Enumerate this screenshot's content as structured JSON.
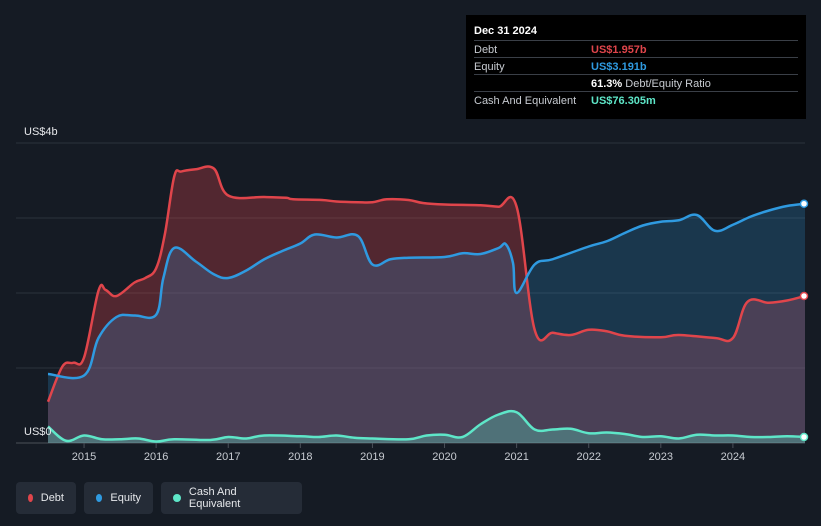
{
  "tooltip": {
    "date": "Dec 31 2024",
    "rows": [
      {
        "label": "Debt",
        "value": "US$1.957b",
        "suffix": "",
        "color": "#e0454b"
      },
      {
        "label": "Equity",
        "value": "US$3.191b",
        "suffix": "",
        "color": "#2f9ae0"
      },
      {
        "label": "",
        "value": "61.3%",
        "suffix": "Debt/Equity Ratio",
        "color": "#ffffff"
      },
      {
        "label": "Cash And Equivalent",
        "value": "US$76.305m",
        "suffix": "",
        "color": "#5ee6c8"
      }
    ]
  },
  "legend": [
    {
      "label": "Debt",
      "color": "#e0454b"
    },
    {
      "label": "Equity",
      "color": "#2f9ae0"
    },
    {
      "label": "Cash And Equivalent",
      "color": "#5ee6c8"
    }
  ],
  "chart_data": {
    "type": "area",
    "y_top_label": "US$4b",
    "y_bottom_label": "US$0",
    "ylim": [
      0,
      4.0
    ],
    "xlim": [
      2014.5,
      2025.0
    ],
    "x_ticks": [
      "2015",
      "2016",
      "2017",
      "2018",
      "2019",
      "2020",
      "2021",
      "2022",
      "2023",
      "2024"
    ],
    "grid": true,
    "series": [
      {
        "name": "Debt",
        "color": "#e0454b",
        "points": [
          [
            2014.5,
            0.55
          ],
          [
            2014.7,
            1.02
          ],
          [
            2014.85,
            1.07
          ],
          [
            2015.0,
            1.14
          ],
          [
            2015.2,
            2.03
          ],
          [
            2015.3,
            2.04
          ],
          [
            2015.45,
            1.96
          ],
          [
            2015.7,
            2.14
          ],
          [
            2015.85,
            2.2
          ],
          [
            2016.0,
            2.33
          ],
          [
            2016.12,
            2.78
          ],
          [
            2016.25,
            3.55
          ],
          [
            2016.35,
            3.62
          ],
          [
            2016.55,
            3.65
          ],
          [
            2016.8,
            3.66
          ],
          [
            2017.0,
            3.3
          ],
          [
            2017.5,
            3.28
          ],
          [
            2017.8,
            3.27
          ],
          [
            2017.9,
            3.25
          ],
          [
            2018.3,
            3.24
          ],
          [
            2018.5,
            3.22
          ],
          [
            2018.8,
            3.21
          ],
          [
            2019.0,
            3.21
          ],
          [
            2019.2,
            3.25
          ],
          [
            2019.5,
            3.24
          ],
          [
            2019.7,
            3.2
          ],
          [
            2020.0,
            3.18
          ],
          [
            2020.5,
            3.17
          ],
          [
            2020.75,
            3.15
          ],
          [
            2021.0,
            3.15
          ],
          [
            2021.25,
            1.51
          ],
          [
            2021.5,
            1.47
          ],
          [
            2021.75,
            1.44
          ],
          [
            2022.0,
            1.51
          ],
          [
            2022.25,
            1.49
          ],
          [
            2022.5,
            1.43
          ],
          [
            2023.0,
            1.41
          ],
          [
            2023.25,
            1.44
          ],
          [
            2023.75,
            1.4
          ],
          [
            2024.0,
            1.4
          ],
          [
            2024.2,
            1.88
          ],
          [
            2024.5,
            1.87
          ],
          [
            2024.75,
            1.9
          ],
          [
            2025.0,
            1.96
          ]
        ]
      },
      {
        "name": "Equity",
        "color": "#2f9ae0",
        "points": [
          [
            2014.5,
            0.92
          ],
          [
            2015.0,
            0.9
          ],
          [
            2015.2,
            1.4
          ],
          [
            2015.45,
            1.68
          ],
          [
            2015.7,
            1.7
          ],
          [
            2016.0,
            1.71
          ],
          [
            2016.1,
            2.2
          ],
          [
            2016.25,
            2.6
          ],
          [
            2016.55,
            2.42
          ],
          [
            2016.8,
            2.25
          ],
          [
            2017.0,
            2.2
          ],
          [
            2017.25,
            2.3
          ],
          [
            2017.5,
            2.45
          ],
          [
            2017.75,
            2.56
          ],
          [
            2018.0,
            2.66
          ],
          [
            2018.2,
            2.78
          ],
          [
            2018.5,
            2.74
          ],
          [
            2018.8,
            2.76
          ],
          [
            2019.0,
            2.38
          ],
          [
            2019.25,
            2.45
          ],
          [
            2019.5,
            2.47
          ],
          [
            2020.0,
            2.48
          ],
          [
            2020.25,
            2.53
          ],
          [
            2020.5,
            2.52
          ],
          [
            2020.75,
            2.6
          ],
          [
            2020.85,
            2.65
          ],
          [
            2020.95,
            2.4
          ],
          [
            2021.0,
            2.0
          ],
          [
            2021.25,
            2.38
          ],
          [
            2021.5,
            2.45
          ],
          [
            2022.0,
            2.62
          ],
          [
            2022.25,
            2.69
          ],
          [
            2022.5,
            2.8
          ],
          [
            2022.75,
            2.9
          ],
          [
            2023.0,
            2.95
          ],
          [
            2023.25,
            2.97
          ],
          [
            2023.5,
            3.04
          ],
          [
            2023.75,
            2.83
          ],
          [
            2024.0,
            2.91
          ],
          [
            2024.25,
            3.02
          ],
          [
            2024.5,
            3.1
          ],
          [
            2024.75,
            3.16
          ],
          [
            2025.0,
            3.19
          ]
        ]
      },
      {
        "name": "Cash And Equivalent",
        "color": "#5ee6c8",
        "points": [
          [
            2014.5,
            0.22
          ],
          [
            2014.75,
            0.03
          ],
          [
            2015.0,
            0.1
          ],
          [
            2015.25,
            0.05
          ],
          [
            2015.5,
            0.05
          ],
          [
            2015.75,
            0.06
          ],
          [
            2016.0,
            0.02
          ],
          [
            2016.25,
            0.05
          ],
          [
            2016.75,
            0.04
          ],
          [
            2017.0,
            0.08
          ],
          [
            2017.25,
            0.06
          ],
          [
            2017.5,
            0.1
          ],
          [
            2018.0,
            0.09
          ],
          [
            2018.25,
            0.08
          ],
          [
            2018.5,
            0.1
          ],
          [
            2018.75,
            0.07
          ],
          [
            2019.0,
            0.06
          ],
          [
            2019.5,
            0.05
          ],
          [
            2019.75,
            0.1
          ],
          [
            2020.0,
            0.11
          ],
          [
            2020.25,
            0.08
          ],
          [
            2020.5,
            0.25
          ],
          [
            2020.75,
            0.38
          ],
          [
            2021.0,
            0.41
          ],
          [
            2021.25,
            0.18
          ],
          [
            2021.5,
            0.18
          ],
          [
            2021.75,
            0.19
          ],
          [
            2022.0,
            0.13
          ],
          [
            2022.25,
            0.14
          ],
          [
            2022.5,
            0.12
          ],
          [
            2022.75,
            0.08
          ],
          [
            2023.0,
            0.09
          ],
          [
            2023.25,
            0.06
          ],
          [
            2023.5,
            0.11
          ],
          [
            2023.75,
            0.1
          ],
          [
            2024.0,
            0.1
          ],
          [
            2024.25,
            0.08
          ],
          [
            2024.5,
            0.08
          ],
          [
            2024.75,
            0.09
          ],
          [
            2025.0,
            0.08
          ]
        ]
      }
    ]
  }
}
